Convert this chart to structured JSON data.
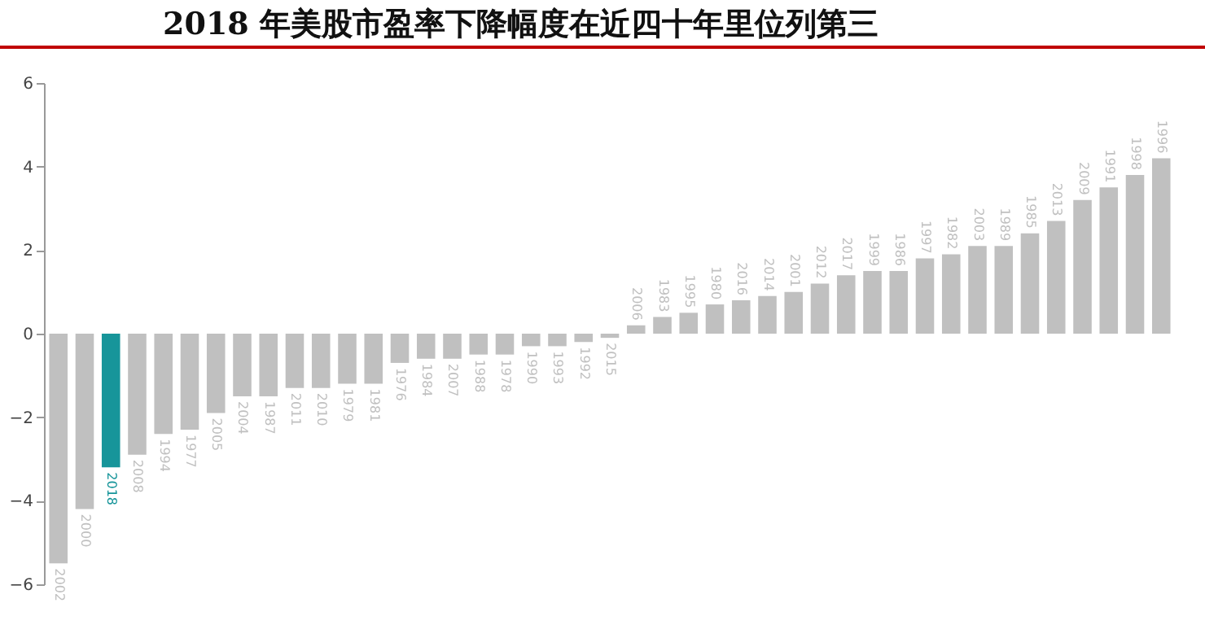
{
  "chart_data": {
    "type": "bar",
    "title": "2018 年美股市盈率下降幅度在近四十年里位列第三",
    "categories": [
      "2002",
      "2000",
      "2018",
      "2008",
      "1994",
      "1977",
      "2005",
      "2004",
      "1987",
      "2011",
      "2010",
      "1979",
      "1981",
      "1976",
      "1984",
      "2007",
      "1988",
      "1978",
      "1990",
      "1993",
      "1992",
      "2015",
      "2006",
      "1983",
      "1995",
      "1980",
      "2016",
      "2014",
      "2001",
      "2012",
      "2017",
      "1999",
      "1986",
      "1997",
      "1982",
      "2003",
      "1989",
      "1985",
      "2013",
      "2009",
      "1991",
      "1998",
      "1996"
    ],
    "values": [
      -5.5,
      -4.2,
      -3.2,
      -2.9,
      -2.4,
      -2.3,
      -1.9,
      -1.5,
      -1.5,
      -1.3,
      -1.3,
      -1.2,
      -1.2,
      -0.7,
      -0.6,
      -0.6,
      -0.5,
      -0.5,
      -0.3,
      -0.3,
      -0.2,
      -0.1,
      0.2,
      0.4,
      0.5,
      0.7,
      0.8,
      0.9,
      1.0,
      1.2,
      1.4,
      1.5,
      1.5,
      1.8,
      1.9,
      2.1,
      2.1,
      2.4,
      2.7,
      3.2,
      3.5,
      3.8,
      4.2
    ],
    "colors": [
      "#c0c0c0",
      "#c0c0c0",
      "#17959a",
      "#c0c0c0",
      "#c0c0c0",
      "#c0c0c0",
      "#c0c0c0",
      "#c0c0c0",
      "#c0c0c0",
      "#c0c0c0",
      "#c0c0c0",
      "#c0c0c0",
      "#c0c0c0",
      "#c0c0c0",
      "#c0c0c0",
      "#c0c0c0",
      "#c0c0c0",
      "#c0c0c0",
      "#c0c0c0",
      "#c0c0c0",
      "#c0c0c0",
      "#c0c0c0",
      "#c0c0c0",
      "#c0c0c0",
      "#c0c0c0",
      "#c0c0c0",
      "#c0c0c0",
      "#c0c0c0",
      "#c0c0c0",
      "#c0c0c0",
      "#c0c0c0",
      "#c0c0c0",
      "#c0c0c0",
      "#c0c0c0",
      "#c0c0c0",
      "#c0c0c0",
      "#c0c0c0",
      "#c0c0c0",
      "#c0c0c0",
      "#c0c0c0",
      "#c0c0c0",
      "#c0c0c0",
      "#c0c0c0"
    ],
    "ylim": [
      -6,
      6
    ],
    "yticks": [
      -6,
      -4,
      -2,
      0,
      2,
      4,
      6
    ],
    "grid": false
  }
}
